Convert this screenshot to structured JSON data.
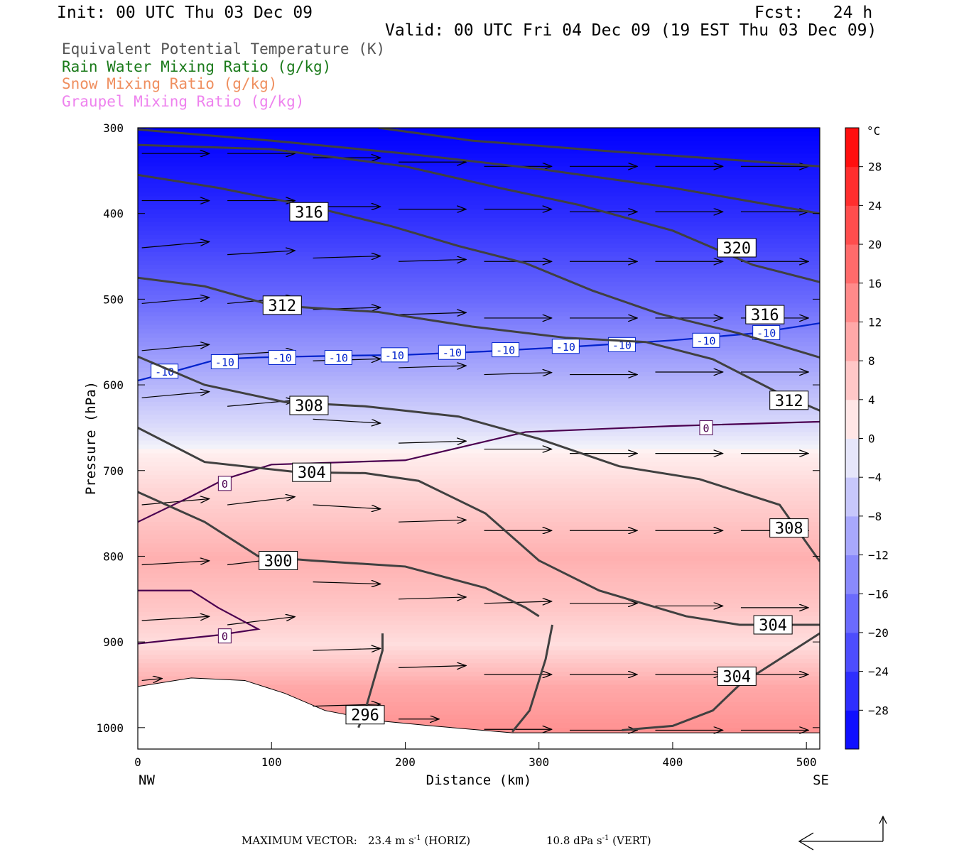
{
  "header": {
    "init": "Init: 00 UTC Thu 03 Dec 09",
    "fcst": "Fcst:   24 h",
    "valid": "Valid: 00 UTC Fri 04 Dec 09 (19 EST Thu 03 Dec 09)"
  },
  "field_labels": [
    {
      "text": "Equivalent Potential Temperature (K)",
      "color": "#555555"
    },
    {
      "text": "Rain Water Mixing Ratio (g/kg)",
      "color": "#1a7a1a"
    },
    {
      "text": "Snow Mixing Ratio (g/kg)",
      "color": "#ef8f5f"
    },
    {
      "text": "Graupel Mixing Ratio (g/kg)",
      "color": "#ee82ee"
    }
  ],
  "footer": {
    "max_vector_label": "MAXIMUM VECTOR:",
    "horiz_value": "23.4 m s",
    "horiz_exp": "-1",
    "horiz_label": "(HORIZ)",
    "vert_value": "10.8 dPa s",
    "vert_exp": "-1",
    "vert_label": "(VERT)"
  },
  "chart_data": {
    "type": "contour",
    "xlabel": "Distance (km)",
    "ylabel": "Pressure (hPa)",
    "xlim": [
      0,
      510
    ],
    "ylim": [
      1025,
      300
    ],
    "x_ticks": [
      0,
      100,
      200,
      300,
      400,
      500
    ],
    "y_ticks": [
      300,
      400,
      500,
      600,
      700,
      800,
      900,
      1000
    ],
    "left_end_label": "NW",
    "right_end_label": "SE",
    "colorbar": {
      "unit": "°C",
      "labels": [
        28,
        24,
        20,
        16,
        12,
        8,
        4,
        0,
        -4,
        -8,
        -12,
        -16,
        -20,
        -24,
        -28
      ],
      "range": [
        -32,
        32
      ]
    },
    "theta_e_contours": [
      {
        "label": "296",
        "points": [
          [
            183,
            890
          ],
          [
            183,
            910
          ],
          [
            170,
            980
          ],
          [
            165,
            1000
          ]
        ]
      },
      {
        "label": "296",
        "points": [
          [
            310,
            880
          ],
          [
            305,
            920
          ],
          [
            293,
            980
          ],
          [
            280,
            1005
          ]
        ]
      },
      {
        "label": "300",
        "points": [
          [
            0,
            725
          ],
          [
            50,
            760
          ],
          [
            90,
            800
          ],
          [
            130,
            805
          ],
          [
            200,
            812
          ],
          [
            260,
            837
          ],
          [
            290,
            860
          ],
          [
            300,
            870
          ]
        ]
      },
      {
        "label": "304",
        "points": [
          [
            0,
            650
          ],
          [
            50,
            690
          ],
          [
            120,
            702
          ],
          [
            170,
            703
          ],
          [
            210,
            712
          ],
          [
            260,
            750
          ],
          [
            300,
            805
          ],
          [
            345,
            840
          ],
          [
            410,
            870
          ],
          [
            450,
            880
          ],
          [
            510,
            880
          ]
        ]
      },
      {
        "label": "304",
        "points": [
          [
            362,
            1003
          ],
          [
            400,
            998
          ],
          [
            430,
            980
          ],
          [
            450,
            950
          ],
          [
            480,
            920
          ],
          [
            510,
            890
          ]
        ]
      },
      {
        "label": "308",
        "points": [
          [
            0,
            567
          ],
          [
            50,
            600
          ],
          [
            110,
            620
          ],
          [
            170,
            625
          ],
          [
            240,
            637
          ],
          [
            300,
            663
          ],
          [
            360,
            695
          ],
          [
            420,
            710
          ],
          [
            480,
            740
          ],
          [
            510,
            806
          ]
        ]
      },
      {
        "label": "312",
        "points": [
          [
            0,
            475
          ],
          [
            50,
            485
          ],
          [
            100,
            507
          ],
          [
            180,
            515
          ],
          [
            250,
            532
          ],
          [
            320,
            545
          ],
          [
            380,
            550
          ],
          [
            430,
            570
          ],
          [
            480,
            610
          ],
          [
            510,
            630
          ]
        ]
      },
      {
        "label": "316",
        "points": [
          [
            0,
            355
          ],
          [
            60,
            370
          ],
          [
            130,
            392
          ],
          [
            190,
            415
          ],
          [
            240,
            438
          ],
          [
            290,
            458
          ],
          [
            340,
            490
          ],
          [
            390,
            517
          ],
          [
            450,
            540
          ],
          [
            510,
            568
          ]
        ]
      },
      {
        "label": "320",
        "points": [
          [
            0,
            320
          ],
          [
            100,
            325
          ],
          [
            200,
            345
          ],
          [
            270,
            370
          ],
          [
            330,
            390
          ],
          [
            400,
            420
          ],
          [
            460,
            460
          ],
          [
            510,
            480
          ]
        ]
      },
      {
        "label": "",
        "points": [
          [
            0,
            302
          ],
          [
            100,
            315
          ],
          [
            200,
            330
          ],
          [
            300,
            348
          ],
          [
            400,
            370
          ],
          [
            510,
            400
          ]
        ]
      },
      {
        "label": "",
        "points": [
          [
            180,
            300
          ],
          [
            250,
            315
          ],
          [
            350,
            327
          ],
          [
            450,
            338
          ],
          [
            510,
            345
          ]
        ]
      }
    ],
    "isotherms": [
      {
        "value": -10,
        "points": [
          [
            0,
            595
          ],
          [
            30,
            583
          ],
          [
            60,
            570
          ],
          [
            90,
            568
          ],
          [
            150,
            566
          ],
          [
            200,
            565
          ],
          [
            260,
            561
          ],
          [
            330,
            555
          ],
          [
            400,
            548
          ],
          [
            460,
            540
          ],
          [
            510,
            528
          ]
        ],
        "labels_at": [
          [
            20,
            584
          ],
          [
            65,
            573
          ],
          [
            108,
            568
          ],
          [
            150,
            568
          ],
          [
            192,
            565
          ],
          [
            235,
            562
          ],
          [
            275,
            559
          ],
          [
            320,
            555
          ],
          [
            362,
            553
          ],
          [
            425,
            548
          ],
          [
            470,
            539
          ]
        ]
      },
      {
        "value": 0,
        "points": [
          [
            0,
            760
          ],
          [
            40,
            730
          ],
          [
            65,
            710
          ],
          [
            100,
            693
          ],
          [
            200,
            688
          ],
          [
            290,
            655
          ],
          [
            400,
            648
          ],
          [
            510,
            643
          ]
        ],
        "labels_at": [
          [
            65,
            715
          ],
          [
            425,
            650
          ]
        ]
      },
      {
        "value": 0,
        "points": [
          [
            0,
            840
          ],
          [
            40,
            840
          ],
          [
            60,
            860
          ],
          [
            90,
            885
          ],
          [
            60,
            892
          ],
          [
            0,
            902
          ]
        ],
        "labels_at": [
          [
            65,
            893
          ]
        ]
      }
    ],
    "wind_vectors": [
      {
        "x": 0,
        "p": 330,
        "u": 1.0,
        "w": 0.0
      },
      {
        "x": 64,
        "p": 330,
        "u": 1.0,
        "w": 0.0
      },
      {
        "x": 128,
        "p": 335,
        "u": 1.0,
        "w": 0.0
      },
      {
        "x": 192,
        "p": 340,
        "u": 1.0,
        "w": 0.0
      },
      {
        "x": 256,
        "p": 345,
        "u": 1.0,
        "w": 0.0
      },
      {
        "x": 320,
        "p": 345,
        "u": 1.0,
        "w": 0.0
      },
      {
        "x": 384,
        "p": 345,
        "u": 1.0,
        "w": 0.0
      },
      {
        "x": 448,
        "p": 345,
        "u": 1.0,
        "w": 0.0
      },
      {
        "x": 0,
        "p": 385,
        "u": 1.0,
        "w": 0.0
      },
      {
        "x": 64,
        "p": 385,
        "u": 1.0,
        "w": 0.0
      },
      {
        "x": 128,
        "p": 392,
        "u": 1.0,
        "w": 0.0
      },
      {
        "x": 192,
        "p": 395,
        "u": 1.0,
        "w": 0.0
      },
      {
        "x": 256,
        "p": 395,
        "u": 1.0,
        "w": 0.0
      },
      {
        "x": 320,
        "p": 398,
        "u": 1.0,
        "w": 0.0
      },
      {
        "x": 384,
        "p": 398,
        "u": 1.0,
        "w": 0.0
      },
      {
        "x": 448,
        "p": 398,
        "u": 1.0,
        "w": 0.0
      },
      {
        "x": 0,
        "p": 440,
        "u": 1.0,
        "w": 0.3
      },
      {
        "x": 64,
        "p": 448,
        "u": 1.0,
        "w": 0.2
      },
      {
        "x": 128,
        "p": 452,
        "u": 1.0,
        "w": 0.1
      },
      {
        "x": 192,
        "p": 456,
        "u": 1.0,
        "w": 0.1
      },
      {
        "x": 256,
        "p": 456,
        "u": 1.0,
        "w": 0.0
      },
      {
        "x": 320,
        "p": 456,
        "u": 1.0,
        "w": 0.0
      },
      {
        "x": 384,
        "p": 456,
        "u": 1.0,
        "w": 0.0
      },
      {
        "x": 448,
        "p": 456,
        "u": 1.0,
        "w": 0.0
      },
      {
        "x": 0,
        "p": 505,
        "u": 1.0,
        "w": 0.3
      },
      {
        "x": 64,
        "p": 505,
        "u": 1.0,
        "w": 0.3
      },
      {
        "x": 128,
        "p": 512,
        "u": 1.0,
        "w": 0.1
      },
      {
        "x": 192,
        "p": 518,
        "u": 1.0,
        "w": 0.1
      },
      {
        "x": 256,
        "p": 522,
        "u": 1.0,
        "w": 0.0
      },
      {
        "x": 320,
        "p": 522,
        "u": 1.0,
        "w": 0.0
      },
      {
        "x": 384,
        "p": 522,
        "u": 1.0,
        "w": 0.0
      },
      {
        "x": 448,
        "p": 522,
        "u": 1.0,
        "w": 0.0
      },
      {
        "x": 0,
        "p": 560,
        "u": 1.0,
        "w": 0.3
      },
      {
        "x": 64,
        "p": 565,
        "u": 1.0,
        "w": 0.2
      },
      {
        "x": 128,
        "p": 572,
        "u": 1.0,
        "w": 0.1
      },
      {
        "x": 192,
        "p": 580,
        "u": 1.0,
        "w": 0.1
      },
      {
        "x": 256,
        "p": 588,
        "u": 1.0,
        "w": 0.1
      },
      {
        "x": 320,
        "p": 588,
        "u": 1.0,
        "w": 0.0
      },
      {
        "x": 384,
        "p": 585,
        "u": 1.0,
        "w": 0.0
      },
      {
        "x": 448,
        "p": 585,
        "u": 1.0,
        "w": 0.0
      },
      {
        "x": 0,
        "p": 615,
        "u": 1.0,
        "w": 0.3
      },
      {
        "x": 64,
        "p": 625,
        "u": 1.0,
        "w": 0.3
      },
      {
        "x": 128,
        "p": 640,
        "u": 1.0,
        "w": -0.2
      },
      {
        "x": 192,
        "p": 668,
        "u": 1.0,
        "w": 0.1
      },
      {
        "x": 256,
        "p": 675,
        "u": 1.0,
        "w": 0.0
      },
      {
        "x": 320,
        "p": 680,
        "u": 1.0,
        "w": 0.0
      },
      {
        "x": 384,
        "p": 680,
        "u": 1.0,
        "w": 0.0
      },
      {
        "x": 448,
        "p": 680,
        "u": 1.0,
        "w": 0.0
      },
      {
        "x": 0,
        "p": 740,
        "u": 1.0,
        "w": 0.3
      },
      {
        "x": 64,
        "p": 740,
        "u": 1.0,
        "w": 0.4
      },
      {
        "x": 128,
        "p": 740,
        "u": 1.0,
        "w": -0.2
      },
      {
        "x": 192,
        "p": 760,
        "u": 1.0,
        "w": 0.1
      },
      {
        "x": 256,
        "p": 770,
        "u": 1.0,
        "w": 0.0
      },
      {
        "x": 320,
        "p": 770,
        "u": 1.0,
        "w": 0.0
      },
      {
        "x": 384,
        "p": 770,
        "u": 1.0,
        "w": 0.0
      },
      {
        "x": 448,
        "p": 770,
        "u": 1.0,
        "w": 0.0
      },
      {
        "x": 0,
        "p": 810,
        "u": 1.0,
        "w": 0.2
      },
      {
        "x": 64,
        "p": 810,
        "u": 1.0,
        "w": 0.4
      },
      {
        "x": 128,
        "p": 830,
        "u": 1.0,
        "w": -0.1
      },
      {
        "x": 192,
        "p": 850,
        "u": 1.0,
        "w": 0.1
      },
      {
        "x": 256,
        "p": 855,
        "u": 1.0,
        "w": 0.1
      },
      {
        "x": 320,
        "p": 855,
        "u": 1.0,
        "w": 0.0
      },
      {
        "x": 384,
        "p": 858,
        "u": 1.0,
        "w": 0.0
      },
      {
        "x": 448,
        "p": 860,
        "u": 1.0,
        "w": 0.0
      },
      {
        "x": 0,
        "p": 875,
        "u": 1.0,
        "w": 0.2
      },
      {
        "x": 64,
        "p": 880,
        "u": 1.0,
        "w": 0.4
      },
      {
        "x": 128,
        "p": 910,
        "u": 1.0,
        "w": 0.1
      },
      {
        "x": 192,
        "p": 930,
        "u": 1.0,
        "w": 0.1
      },
      {
        "x": 256,
        "p": 938,
        "u": 1.0,
        "w": 0.0
      },
      {
        "x": 320,
        "p": 938,
        "u": 1.0,
        "w": 0.0
      },
      {
        "x": 384,
        "p": 938,
        "u": 1.0,
        "w": 0.0
      },
      {
        "x": 448,
        "p": 938,
        "u": 1.0,
        "w": 0.0
      },
      {
        "x": 0,
        "p": 945,
        "u": 0.3,
        "w": 0.1
      },
      {
        "x": 128,
        "p": 975,
        "u": 1.0,
        "w": 0.1
      },
      {
        "x": 192,
        "p": 990,
        "u": 0.6,
        "w": 0.0
      },
      {
        "x": 256,
        "p": 1002,
        "u": 1.0,
        "w": 0.0
      },
      {
        "x": 320,
        "p": 1003,
        "u": 1.0,
        "w": 0.0
      },
      {
        "x": 384,
        "p": 1003,
        "u": 1.0,
        "w": 0.0
      },
      {
        "x": 448,
        "p": 1003,
        "u": 1.0,
        "w": 0.0
      }
    ],
    "terrain_surface": [
      [
        0,
        952
      ],
      [
        40,
        942
      ],
      [
        80,
        945
      ],
      [
        110,
        960
      ],
      [
        140,
        980
      ],
      [
        180,
        992
      ],
      [
        220,
        998
      ],
      [
        280,
        1006
      ],
      [
        330,
        1006
      ],
      [
        400,
        1006
      ],
      [
        510,
        1006
      ]
    ]
  }
}
